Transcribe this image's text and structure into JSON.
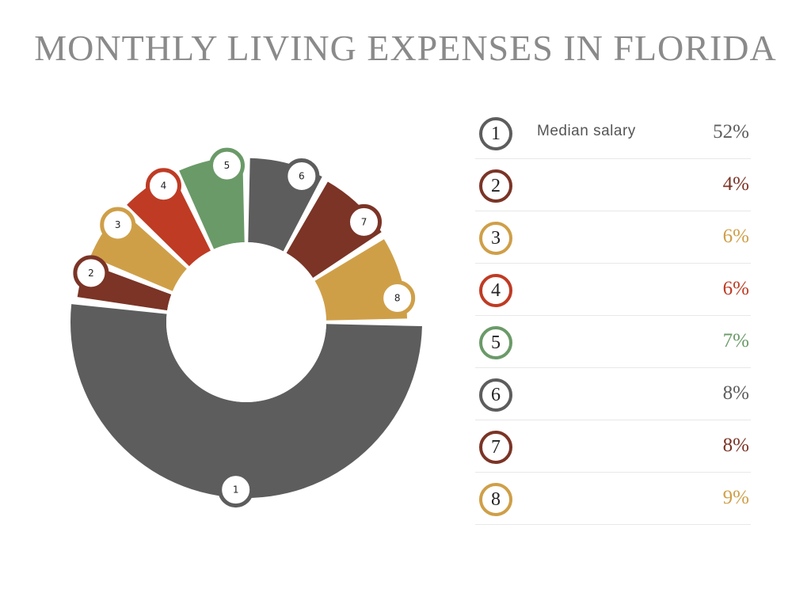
{
  "title": "MONTHLY LIVING EXPENSES IN FLORIDA",
  "colors": {
    "dark_gray": "#5d5d5d",
    "brown": "#7b3426",
    "gold": "#cf9f48",
    "red": "#bf3b24",
    "green": "#6a9a68"
  },
  "chart_data": {
    "type": "pie",
    "title": "MONTHLY LIVING EXPENSES IN FLORIDA",
    "categories": [
      "1",
      "2",
      "3",
      "4",
      "5",
      "6",
      "7",
      "8"
    ],
    "values": [
      52,
      4,
      6,
      6,
      7,
      8,
      8,
      9
    ],
    "unit": "%",
    "legend_position": "right",
    "slices": [
      {
        "number": "1",
        "label": "Median salary",
        "value": 52,
        "display": "52%",
        "color": "#5d5d5d"
      },
      {
        "number": "2",
        "label": "",
        "value": 4,
        "display": "4%",
        "color": "#7b3426"
      },
      {
        "number": "3",
        "label": "",
        "value": 6,
        "display": "6%",
        "color": "#cf9f48"
      },
      {
        "number": "4",
        "label": "",
        "value": 6,
        "display": "6%",
        "color": "#bf3b24"
      },
      {
        "number": "5",
        "label": "",
        "value": 7,
        "display": "7%",
        "color": "#6a9a68"
      },
      {
        "number": "6",
        "label": "",
        "value": 8,
        "display": "8%",
        "color": "#5d5d5d"
      },
      {
        "number": "7",
        "label": "",
        "value": 8,
        "display": "8%",
        "color": "#7b3426"
      },
      {
        "number": "8",
        "label": "",
        "value": 9,
        "display": "9%",
        "color": "#cf9f48"
      }
    ]
  }
}
